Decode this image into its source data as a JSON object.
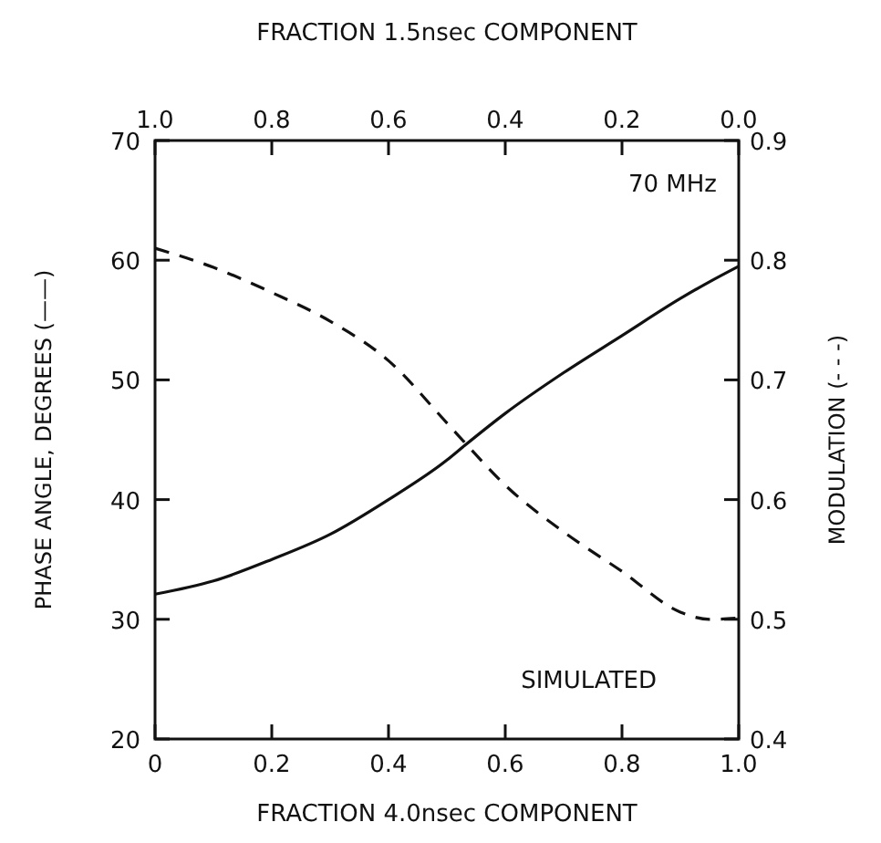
{
  "chart_data": {
    "type": "line",
    "xlabel": "FRACTION  4.0nsec  COMPONENT",
    "x2label": "FRACTION  1.5nsec  COMPONENT",
    "ylabel": "PHASE ANGLE, DEGREES (——)",
    "y2label": "MODULATION  (- - -)",
    "x": [
      0,
      0.1,
      0.2,
      0.3,
      0.4,
      0.5,
      0.53,
      0.6,
      0.7,
      0.8,
      0.9,
      0.95,
      1.0
    ],
    "series": [
      {
        "color": "#111111",
        "line_style": "solid",
        "values": [
          32.1,
          33.2,
          35.0,
          37.1,
          40.0,
          43.3,
          44.5,
          47.2,
          50.6,
          53.7,
          56.8,
          58.2,
          59.5
        ]
      },
      {
        "color": "#111111",
        "line_style": "dashed",
        "axis": "y2",
        "values": [
          0.81,
          0.794,
          0.773,
          0.749,
          0.716,
          0.664,
          0.648,
          0.612,
          0.573,
          0.54,
          0.506,
          0.5,
          0.501
        ]
      }
    ],
    "xlim": [
      0,
      1
    ],
    "xticks": [
      0,
      0.2,
      0.4,
      0.6,
      0.8,
      {
        "value": 1,
        "label": "1.0"
      }
    ],
    "x2lim": [
      1,
      0
    ],
    "x2ticks": [
      {
        "value": 1,
        "label": "1.0"
      },
      0.8,
      0.6,
      0.4,
      0.2,
      {
        "value": 0,
        "label": "0.0"
      }
    ],
    "ylim": [
      20,
      70
    ],
    "yticks": [
      20,
      30,
      40,
      50,
      60,
      70
    ],
    "y2lim": [
      0.4,
      0.9
    ],
    "y2ticks": [
      0.4,
      0.5,
      0.6,
      0.7,
      0.8,
      0.9
    ],
    "grid": false,
    "marker": "none",
    "annotations": [
      "70 MHz",
      "SIMULATED"
    ]
  }
}
